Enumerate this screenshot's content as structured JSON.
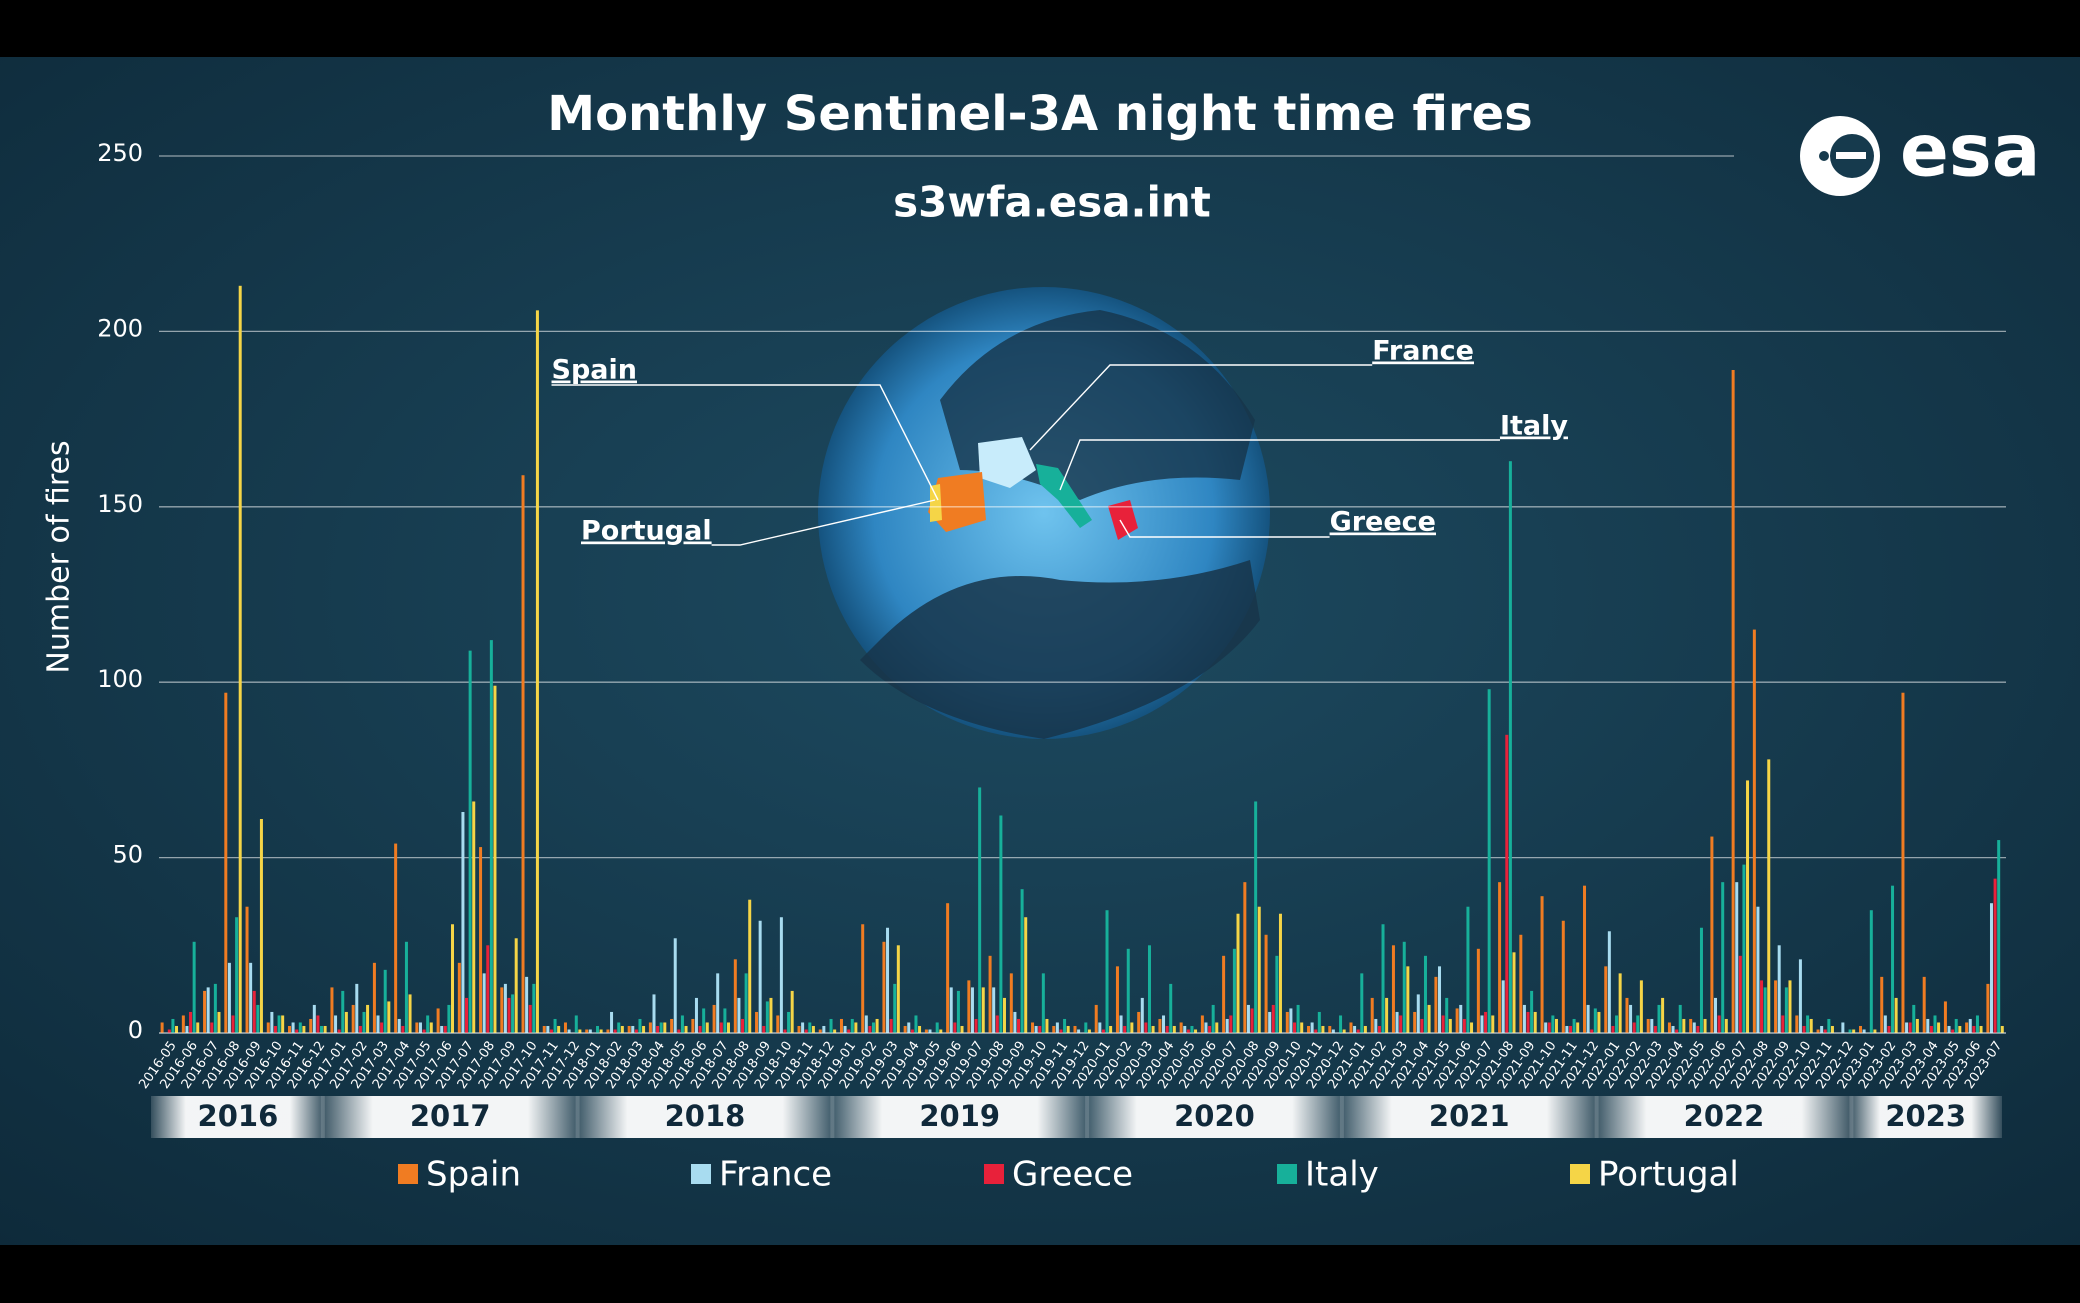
{
  "chart_data": {
    "type": "bar",
    "title": "Monthly Sentinel-3A night time fires",
    "subtitle": "s3wfa.esa.int",
    "logo": "esa",
    "y_label": "Number of fires",
    "ylim": [
      0,
      250
    ],
    "yticks": [
      0,
      50,
      100,
      150,
      200,
      250
    ],
    "grid": true,
    "categories": [
      "2016-05",
      "2016-06",
      "2016-07",
      "2016-08",
      "2016-09",
      "2016-10",
      "2016-11",
      "2016-12",
      "2017-01",
      "2017-02",
      "2017-03",
      "2017-04",
      "2017-05",
      "2017-06",
      "2017-07",
      "2017-08",
      "2017-09",
      "2017-10",
      "2017-11",
      "2017-12",
      "2018-01",
      "2018-02",
      "2018-03",
      "2018-04",
      "2018-05",
      "2018-06",
      "2018-07",
      "2018-08",
      "2018-09",
      "2018-10",
      "2018-11",
      "2018-12",
      "2019-01",
      "2019-02",
      "2019-03",
      "2019-04",
      "2019-05",
      "2019-06",
      "2019-07",
      "2019-08",
      "2019-09",
      "2019-10",
      "2019-11",
      "2019-12",
      "2020-01",
      "2020-02",
      "2020-03",
      "2020-04",
      "2020-05",
      "2020-06",
      "2020-07",
      "2020-08",
      "2020-09",
      "2020-10",
      "2020-11",
      "2020-12",
      "2021-01",
      "2021-02",
      "2021-03",
      "2021-04",
      "2021-05",
      "2021-06",
      "2021-07",
      "2021-08",
      "2021-09",
      "2021-10",
      "2021-11",
      "2021-12",
      "2022-01",
      "2022-02",
      "2022-03",
      "2022-04",
      "2022-05",
      "2022-06",
      "2022-07",
      "2022-08",
      "2022-09",
      "2022-10",
      "2022-11",
      "2022-12",
      "2023-01",
      "2023-02",
      "2023-03",
      "2023-04",
      "2023-05",
      "2023-06",
      "2023-07"
    ],
    "years": [
      "2016",
      "2017",
      "2018",
      "2019",
      "2020",
      "2021",
      "2022",
      "2023"
    ],
    "series": [
      {
        "name": "Spain",
        "color": "#f07c22",
        "values": [
          3,
          5,
          12,
          97,
          36,
          3,
          2,
          4,
          13,
          8,
          20,
          54,
          3,
          7,
          20,
          53,
          13,
          159,
          2,
          3,
          1,
          1,
          2,
          3,
          4,
          4,
          8,
          21,
          6,
          5,
          2,
          1,
          4,
          31,
          26,
          2,
          1,
          37,
          15,
          22,
          17,
          3,
          2,
          2,
          8,
          19,
          6,
          4,
          3,
          5,
          22,
          43,
          28,
          6,
          2,
          2,
          3,
          10,
          25,
          6,
          16,
          7,
          24,
          43,
          28,
          39,
          32,
          42,
          19,
          10,
          4,
          3,
          4,
          56,
          189,
          115,
          15,
          5,
          1,
          0,
          2,
          16,
          97,
          16,
          9,
          3,
          14
        ]
      },
      {
        "name": "France",
        "color": "#a8dcf0",
        "values": [
          0,
          2,
          13,
          20,
          20,
          6,
          3,
          8,
          5,
          14,
          5,
          4,
          3,
          2,
          63,
          17,
          14,
          16,
          2,
          1,
          1,
          6,
          2,
          11,
          27,
          10,
          17,
          10,
          32,
          33,
          3,
          2,
          2,
          5,
          30,
          3,
          1,
          13,
          13,
          13,
          6,
          2,
          3,
          1,
          3,
          5,
          10,
          5,
          2,
          3,
          4,
          8,
          6,
          7,
          3,
          1,
          2,
          4,
          6,
          11,
          19,
          8,
          5,
          15,
          8,
          3,
          2,
          8,
          29,
          8,
          4,
          2,
          3,
          10,
          43,
          36,
          25,
          21,
          2,
          3,
          1,
          5,
          3,
          4,
          2,
          4,
          37
        ]
      },
      {
        "name": "Greece",
        "color": "#e8213a",
        "values": [
          1,
          6,
          3,
          5,
          12,
          2,
          1,
          5,
          1,
          2,
          3,
          2,
          1,
          2,
          10,
          25,
          10,
          8,
          1,
          0,
          0,
          1,
          1,
          2,
          1,
          2,
          3,
          4,
          2,
          1,
          1,
          0,
          1,
          2,
          4,
          1,
          0,
          3,
          4,
          5,
          4,
          2,
          1,
          0,
          1,
          2,
          3,
          2,
          1,
          2,
          5,
          7,
          8,
          3,
          1,
          0,
          1,
          2,
          5,
          4,
          5,
          4,
          6,
          85,
          6,
          3,
          2,
          1,
          2,
          3,
          2,
          1,
          2,
          5,
          22,
          15,
          5,
          2,
          1,
          0,
          0,
          2,
          3,
          2,
          1,
          2,
          44
        ]
      },
      {
        "name": "Italy",
        "color": "#17b09a",
        "values": [
          4,
          26,
          14,
          33,
          8,
          5,
          3,
          2,
          12,
          6,
          18,
          26,
          5,
          8,
          109,
          112,
          11,
          14,
          4,
          5,
          2,
          3,
          4,
          3,
          5,
          7,
          7,
          17,
          9,
          6,
          3,
          4,
          4,
          3,
          14,
          5,
          3,
          12,
          70,
          62,
          41,
          17,
          4,
          3,
          35,
          24,
          25,
          14,
          2,
          8,
          24,
          66,
          22,
          8,
          6,
          5,
          17,
          31,
          26,
          22,
          10,
          36,
          98,
          163,
          12,
          5,
          4,
          7,
          5,
          5,
          8,
          8,
          30,
          43,
          48,
          13,
          13,
          5,
          4,
          1,
          35,
          42,
          8,
          5,
          4,
          5,
          55
        ]
      },
      {
        "name": "Portugal",
        "color": "#f5d547",
        "values": [
          2,
          3,
          6,
          213,
          61,
          5,
          2,
          2,
          6,
          8,
          9,
          11,
          3,
          31,
          66,
          99,
          27,
          206,
          2,
          1,
          1,
          2,
          2,
          3,
          2,
          3,
          3,
          38,
          10,
          12,
          2,
          1,
          3,
          4,
          25,
          2,
          1,
          2,
          13,
          10,
          33,
          4,
          2,
          1,
          2,
          3,
          2,
          2,
          1,
          3,
          34,
          36,
          34,
          3,
          2,
          1,
          2,
          10,
          19,
          8,
          4,
          3,
          5,
          23,
          6,
          4,
          3,
          6,
          17,
          15,
          10,
          4,
          4,
          4,
          72,
          78,
          15,
          4,
          2,
          1,
          1,
          10,
          4,
          3,
          2,
          2,
          2
        ]
      }
    ],
    "annotations": [
      "Spain",
      "France",
      "Italy",
      "Portugal",
      "Greece"
    ]
  }
}
